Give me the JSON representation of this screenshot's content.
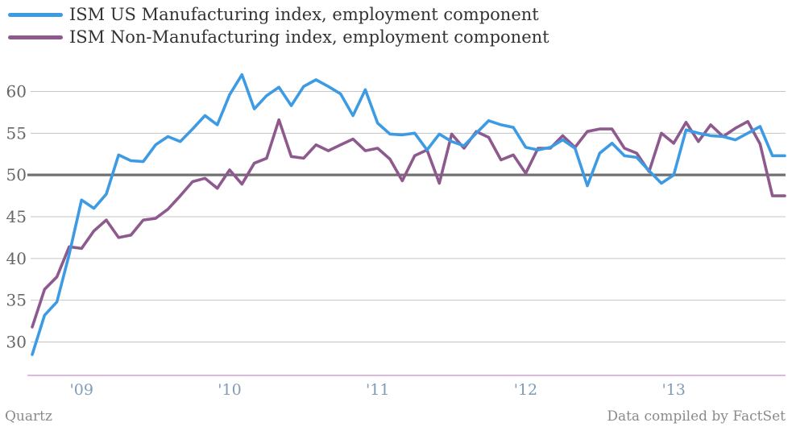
{
  "legend": {
    "items": [
      {
        "label": "ISM US Manufacturing index, employment component",
        "color": "#3d9be3"
      },
      {
        "label": "ISM Non-Manufacturing index, employment component",
        "color": "#8e5a8e"
      }
    ]
  },
  "footer": {
    "source": "Quartz",
    "credit": "Data compiled by FactSet"
  },
  "chart_data": {
    "type": "line",
    "title": "",
    "xlabel": "",
    "ylabel": "",
    "ylim": [
      26,
      64
    ],
    "yticks": [
      30,
      35,
      40,
      45,
      50,
      55,
      60
    ],
    "reference_line": 50,
    "grid": true,
    "legend_position": "top-left",
    "x": [
      "2008-09",
      "2008-10",
      "2008-11",
      "2008-12",
      "2009-01",
      "2009-02",
      "2009-03",
      "2009-04",
      "2009-05",
      "2009-06",
      "2009-07",
      "2009-08",
      "2009-09",
      "2009-10",
      "2009-11",
      "2009-12",
      "2010-01",
      "2010-02",
      "2010-03",
      "2010-04",
      "2010-05",
      "2010-06",
      "2010-07",
      "2010-08",
      "2010-09",
      "2010-10",
      "2010-11",
      "2010-12",
      "2011-01",
      "2011-02",
      "2011-03",
      "2011-04",
      "2011-05",
      "2011-06",
      "2011-07",
      "2011-08",
      "2011-09",
      "2011-10",
      "2011-11",
      "2011-12",
      "2012-01",
      "2012-02",
      "2012-03",
      "2012-04",
      "2012-05",
      "2012-06",
      "2012-07",
      "2012-08",
      "2012-09",
      "2012-10",
      "2012-11",
      "2012-12",
      "2013-01",
      "2013-02",
      "2013-03",
      "2013-04",
      "2013-05",
      "2013-06",
      "2013-07",
      "2013-08",
      "2013-09",
      "2013-10"
    ],
    "x_tick_labels": [
      {
        "label": "'09",
        "x": "2009-01"
      },
      {
        "label": "'10",
        "x": "2010-01"
      },
      {
        "label": "'11",
        "x": "2011-01"
      },
      {
        "label": "'12",
        "x": "2012-01"
      },
      {
        "label": "'13",
        "x": "2013-01"
      }
    ],
    "series": [
      {
        "name": "ISM US Manufacturing index, employment component",
        "color": "#3d9be3",
        "values": [
          28.5,
          33.2,
          34.8,
          40.5,
          47.0,
          46.0,
          47.7,
          52.4,
          51.7,
          51.6,
          53.6,
          54.6,
          54.0,
          55.5,
          57.1,
          56.0,
          59.6,
          62.0,
          57.9,
          59.5,
          60.5,
          58.3,
          60.6,
          61.4,
          60.6,
          59.7,
          57.1,
          60.2,
          56.2,
          54.9,
          54.8,
          55.0,
          53.0,
          54.9,
          54.0,
          53.5,
          55.0,
          56.5,
          56.0,
          55.7,
          53.3,
          53.0,
          53.3,
          54.2,
          53.2,
          48.7,
          52.6,
          53.8,
          52.3,
          52.1,
          50.5,
          49.0,
          50.0,
          55.4,
          55.0,
          54.7,
          54.6,
          54.2,
          55.0,
          55.8,
          52.3,
          52.3
        ]
      },
      {
        "name": "ISM Non-Manufacturing index, employment component",
        "color": "#8e5a8e",
        "values": [
          31.8,
          36.3,
          37.8,
          41.4,
          41.2,
          43.3,
          44.6,
          42.5,
          42.8,
          44.6,
          44.8,
          45.9,
          47.5,
          49.2,
          49.6,
          48.4,
          50.6,
          48.9,
          51.4,
          52.0,
          56.6,
          52.2,
          52.0,
          53.6,
          52.9,
          53.6,
          54.3,
          52.9,
          53.2,
          51.9,
          49.3,
          52.3,
          53.0,
          49.0,
          54.9,
          53.2,
          55.2,
          54.5,
          51.8,
          52.4,
          50.2,
          53.2,
          53.2,
          54.7,
          53.3,
          55.2,
          55.5,
          55.5,
          53.2,
          52.6,
          50.4,
          55.0,
          53.8,
          56.3,
          54.0,
          56.0,
          54.6,
          55.6,
          56.4,
          53.7,
          47.5,
          47.5
        ]
      }
    ]
  }
}
